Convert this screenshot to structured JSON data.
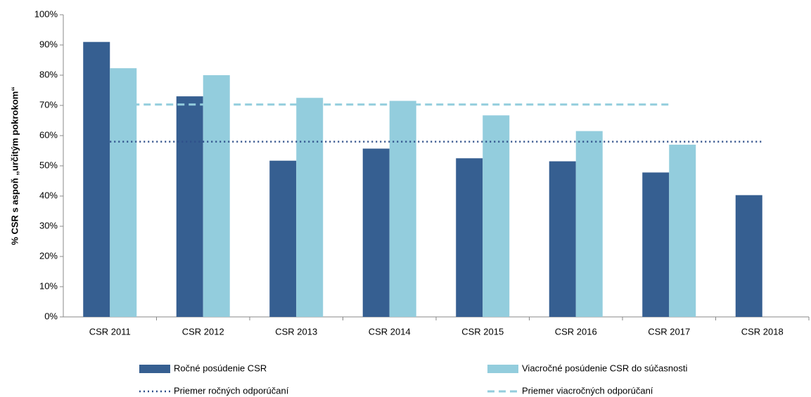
{
  "chart_data": {
    "type": "bar",
    "y_label": "% CSR s aspoň „určitým pokrokom“",
    "categories": [
      "CSR 2011",
      "CSR 2012",
      "CSR 2013",
      "CSR 2014",
      "CSR 2015",
      "CSR 2016",
      "CSR 2017",
      "CSR 2018"
    ],
    "series": [
      {
        "name": "Ročné posúdenie CSR",
        "color": "#365f91",
        "kind": "bar",
        "values": [
          91,
          73,
          51.7,
          55.7,
          52.5,
          51.5,
          47.8,
          40.3
        ]
      },
      {
        "name": "Viacročné posúdenie CSR do súčasnosti",
        "color": "#93cddd",
        "kind": "bar",
        "values": [
          82.3,
          80,
          72.5,
          71.5,
          66.7,
          61.5,
          57,
          null
        ]
      },
      {
        "name": "Priemer ročných odporúčaní",
        "color": "#2e4f8a",
        "kind": "line",
        "dash": "dotted",
        "values": [
          58,
          58,
          58,
          58,
          58,
          58,
          58,
          58
        ]
      },
      {
        "name": "Priemer viacročných odporúčaní",
        "color": "#93cddd",
        "kind": "line",
        "dash": "dashed",
        "values": [
          70.3,
          70.3,
          70.3,
          70.3,
          70.3,
          70.3,
          70.3,
          null
        ]
      }
    ],
    "ylim": [
      0,
      100
    ],
    "yticks": [
      {
        "value": 0,
        "label": "0%"
      },
      {
        "value": 10,
        "label": "10%"
      },
      {
        "value": 20,
        "label": "20%"
      },
      {
        "value": 30,
        "label": "30%"
      },
      {
        "value": 40,
        "label": "40%"
      },
      {
        "value": 50,
        "label": "50%"
      },
      {
        "value": 60,
        "label": "60%"
      },
      {
        "value": 70,
        "label": "70%"
      },
      {
        "value": 80,
        "label": "80%"
      },
      {
        "value": 90,
        "label": "90%"
      },
      {
        "value": 100,
        "label": "100%"
      }
    ],
    "grid": false
  }
}
